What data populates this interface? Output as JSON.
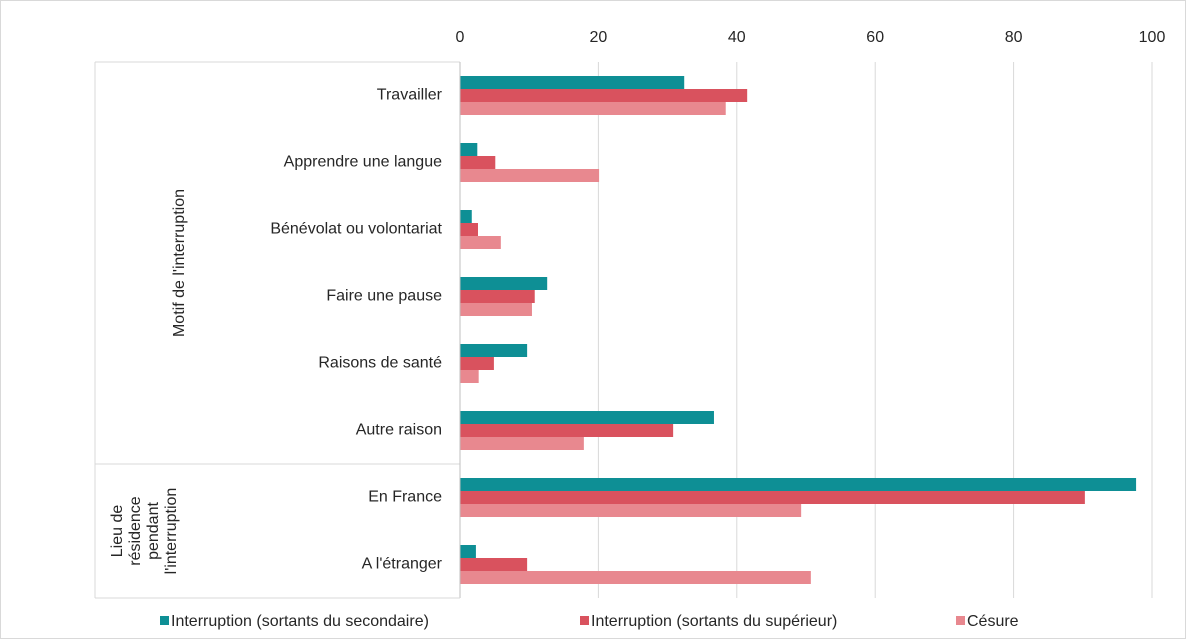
{
  "chart_data": {
    "type": "bar",
    "orientation": "horizontal",
    "groups": [
      {
        "name": "Motif de l'interruption",
        "categories": [
          "Travailler",
          "Apprendre une langue",
          "Bénévolat ou volontariat",
          "Faire une pause",
          "Raisons de santé",
          "Autre raison"
        ]
      },
      {
        "name": "Lieu de résidence pendant l'interruption",
        "categories": [
          "En France",
          "A l'étranger"
        ]
      }
    ],
    "series": [
      {
        "name": "Interruption (sortants du secondaire)",
        "color": "#0e8f95",
        "values": [
          32.4,
          2.5,
          1.7,
          12.6,
          9.7,
          36.7,
          97.7,
          2.3
        ]
      },
      {
        "name": "Interruption (sortants du supérieur)",
        "color": "#d9525e",
        "values": [
          41.5,
          5.1,
          2.6,
          10.8,
          4.9,
          30.8,
          90.3,
          9.7
        ]
      },
      {
        "name": "Césure",
        "color": "#e8888f",
        "values": [
          38.4,
          20.1,
          5.9,
          10.4,
          2.7,
          17.9,
          49.3,
          50.7
        ]
      }
    ],
    "xlim": [
      0,
      100
    ],
    "xticks": [
      0,
      20,
      40,
      60,
      80,
      100
    ],
    "grid": true,
    "legend": "bottom"
  }
}
